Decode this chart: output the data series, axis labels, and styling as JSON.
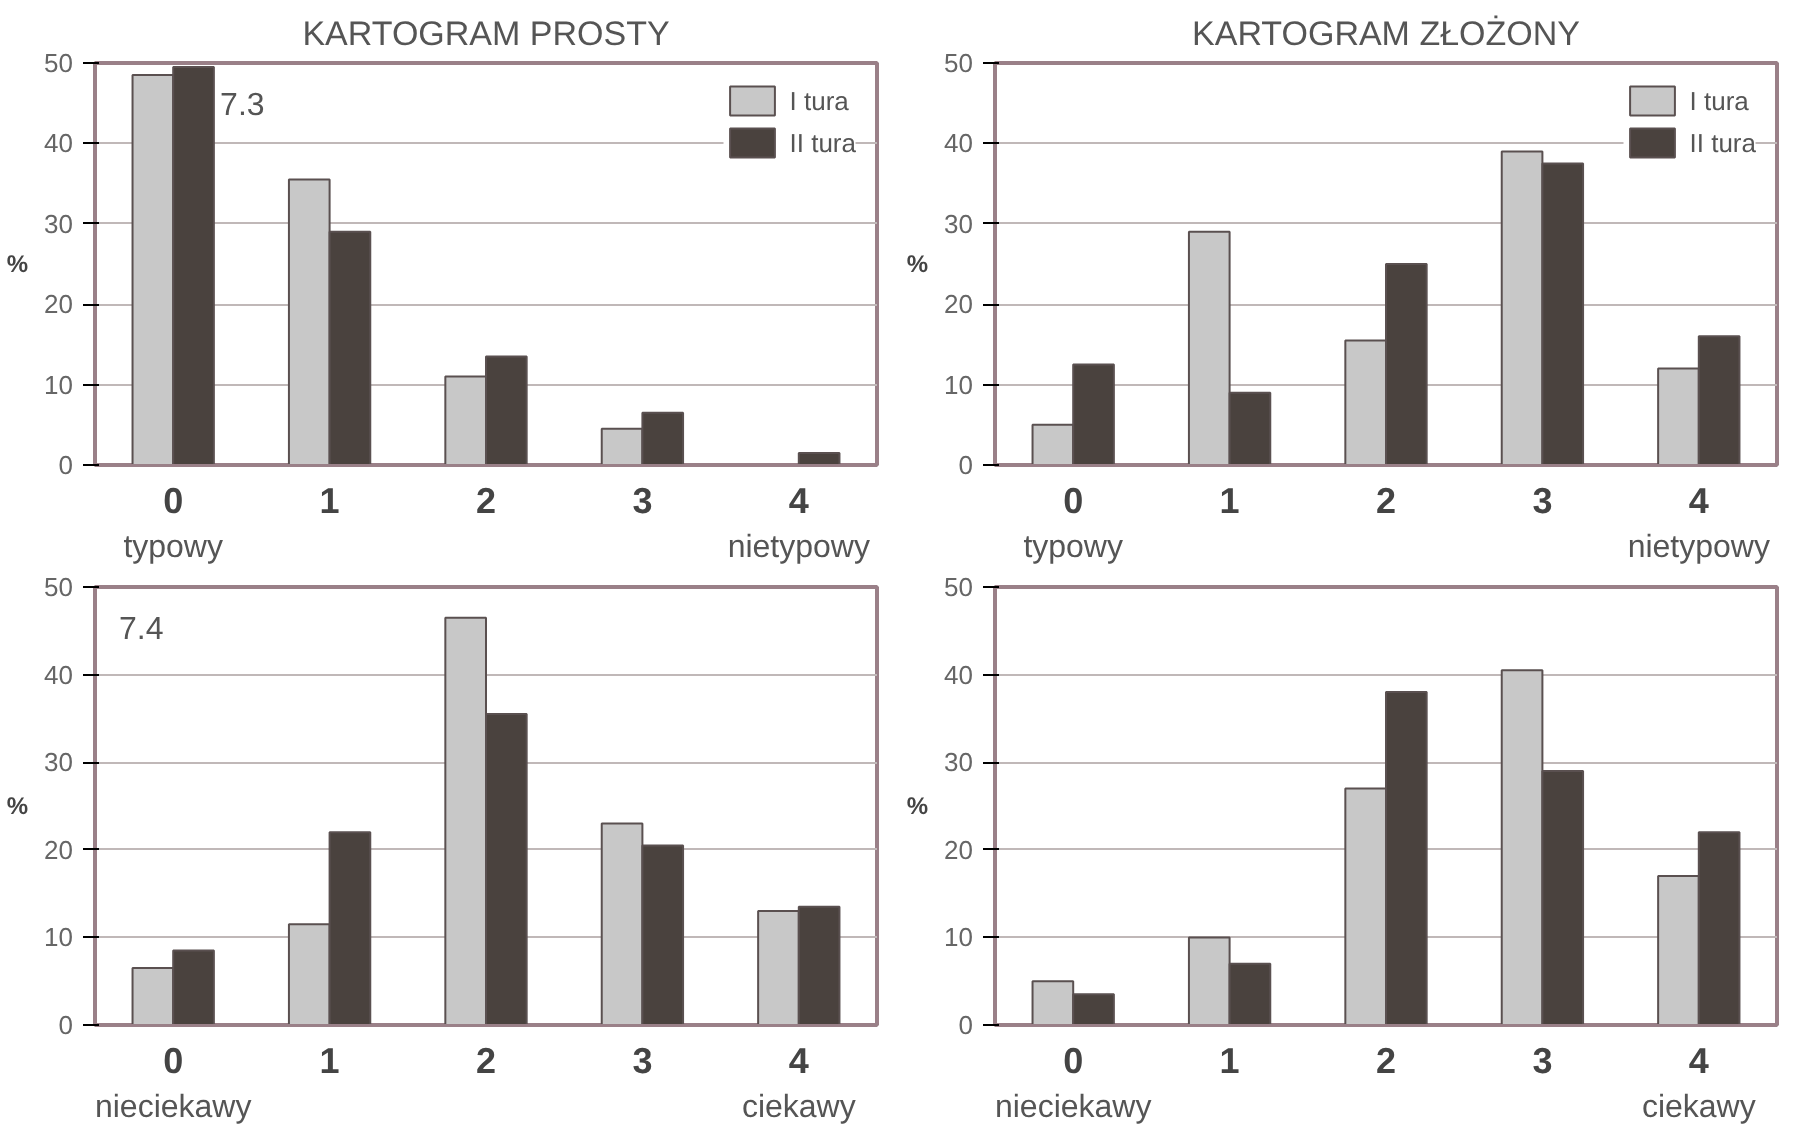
{
  "chart_data": [
    {
      "type": "bar",
      "title": "KARTOGRAM PROSTY",
      "ylabel": "%",
      "categories": [
        "0",
        "1",
        "2",
        "3",
        "4"
      ],
      "ylim": [
        0,
        50
      ],
      "yticks": [
        0,
        10,
        20,
        30,
        40,
        50
      ],
      "grid": "y",
      "legend": "top right",
      "annotations": [
        "7.3",
        "typowy",
        "nietypowy"
      ],
      "series": [
        {
          "name": "I tura",
          "color": "#c8c8c8",
          "values": [
            48.5,
            35.5,
            11,
            4.5,
            0
          ]
        },
        {
          "name": "II tura",
          "color": "#4a423e",
          "values": [
            49.5,
            29,
            13.5,
            6.5,
            1.5
          ]
        }
      ]
    },
    {
      "type": "bar",
      "title": "KARTOGRAM ZŁOŻONY",
      "ylabel": "%",
      "categories": [
        "0",
        "1",
        "2",
        "3",
        "4"
      ],
      "ylim": [
        0,
        50
      ],
      "yticks": [
        0,
        10,
        20,
        30,
        40,
        50
      ],
      "grid": "y",
      "legend": "top right",
      "annotations": [
        "typowy",
        "nietypowy"
      ],
      "series": [
        {
          "name": "I tura",
          "color": "#c8c8c8",
          "values": [
            5,
            29,
            15.5,
            39,
            12
          ]
        },
        {
          "name": "II tura",
          "color": "#4a423e",
          "values": [
            12.5,
            9,
            25,
            37.5,
            16
          ]
        }
      ]
    },
    {
      "type": "bar",
      "ylabel": "%",
      "categories": [
        "0",
        "1",
        "2",
        "3",
        "4"
      ],
      "ylim": [
        0,
        50
      ],
      "yticks": [
        0,
        10,
        20,
        30,
        40,
        50
      ],
      "grid": "y",
      "annotations": [
        "7.4",
        "nieciekawy",
        "ciekawy"
      ],
      "series": [
        {
          "color": "#c8c8c8",
          "values": [
            6.5,
            11.5,
            46.5,
            23,
            13
          ]
        },
        {
          "color": "#4a423e",
          "values": [
            8.5,
            22,
            35.5,
            20.5,
            13.5
          ]
        }
      ]
    },
    {
      "type": "bar",
      "ylabel": "%",
      "categories": [
        "0",
        "1",
        "2",
        "3",
        "4"
      ],
      "ylim": [
        0,
        50
      ],
      "yticks": [
        0,
        10,
        20,
        30,
        40,
        50
      ],
      "grid": "y",
      "annotations": [
        "nieciekawy",
        "ciekawy"
      ],
      "series": [
        {
          "color": "#c8c8c8",
          "values": [
            5,
            10,
            27,
            40.5,
            17
          ]
        },
        {
          "color": "#4a423e",
          "values": [
            3.5,
            7,
            38,
            29,
            22
          ]
        }
      ]
    }
  ]
}
